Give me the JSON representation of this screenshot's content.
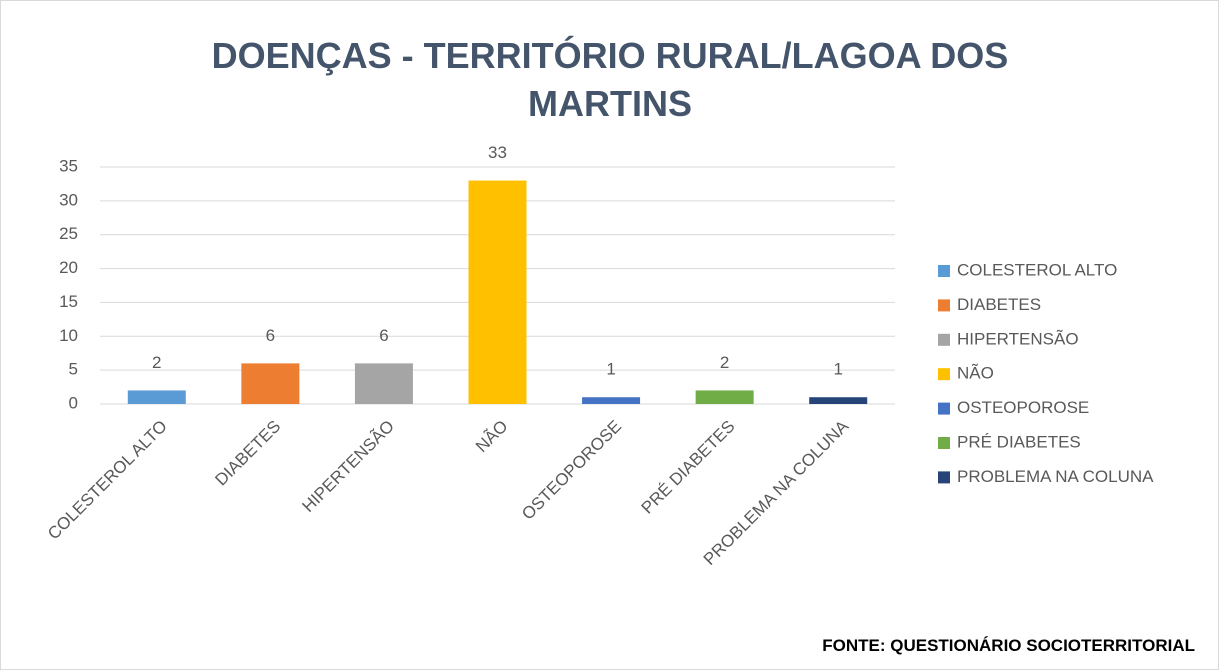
{
  "chart_data": {
    "type": "bar",
    "title": "DOENÇAS - TERRITÓRIO RURAL/LAGOA DOS MARTINS",
    "categories": [
      "COLESTEROL ALTO",
      "DIABETES",
      "HIPERTENSÃO",
      "NÃO",
      "OSTEOPOROSE",
      "PRÉ DIABETES",
      "PROBLEMA NA COLUNA"
    ],
    "values": [
      2,
      6,
      6,
      33,
      1,
      2,
      1
    ],
    "colors": [
      "#5b9bd5",
      "#ed7d31",
      "#a5a5a5",
      "#ffc000",
      "#4472c4",
      "#70ad47",
      "#264478"
    ],
    "ylim": [
      0,
      35
    ],
    "yticks": [
      0,
      5,
      10,
      15,
      20,
      25,
      30,
      35
    ],
    "grid": true,
    "legend": "right",
    "source": "FONTE: QUESTIONÁRIO SOCIOTERRITORIAL"
  }
}
